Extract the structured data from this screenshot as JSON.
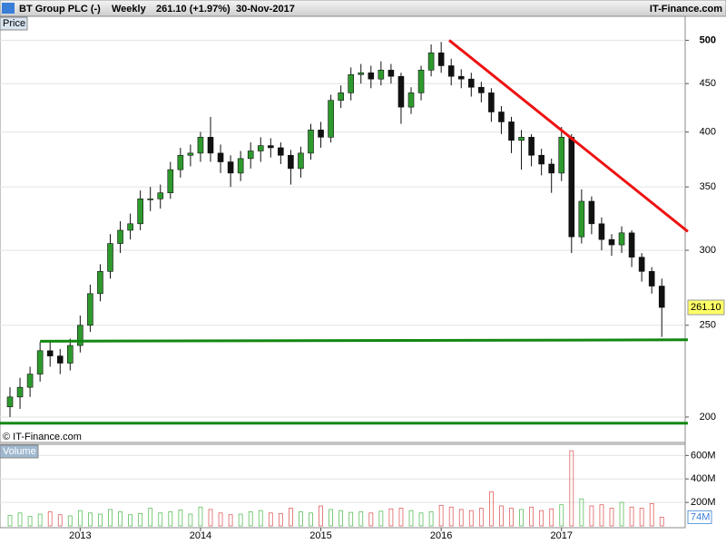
{
  "header": {
    "symbol": "BT Group PLC (-)",
    "period": "Weekly",
    "change": "261.10 (+1.97%)",
    "date": "30-Nov-2017",
    "brand": "IT-Finance.com"
  },
  "chart_data": [
    {
      "type": "candlestick",
      "panel_label": "Price",
      "copyright": "© IT-Finance.com",
      "categories": [
        null,
        null,
        null,
        null,
        null,
        null,
        null,
        "2013",
        null,
        null,
        null,
        null,
        null,
        null,
        null,
        null,
        null,
        null,
        null,
        "2014",
        null,
        null,
        null,
        null,
        null,
        null,
        null,
        null,
        null,
        null,
        null,
        "2015",
        null,
        null,
        null,
        null,
        null,
        null,
        null,
        null,
        null,
        null,
        null,
        "2016",
        null,
        null,
        null,
        null,
        null,
        null,
        null,
        null,
        null,
        null,
        null,
        "2017",
        null,
        null,
        null,
        null,
        null,
        null,
        null,
        null,
        null,
        null
      ],
      "open": [
        205,
        210,
        215,
        222,
        235,
        232,
        228,
        238,
        250,
        270,
        285,
        305,
        315,
        320,
        340,
        340,
        345,
        365,
        378,
        380,
        395,
        380,
        372,
        362,
        375,
        382,
        387,
        385,
        378,
        366,
        380,
        402,
        395,
        432,
        440,
        460,
        462,
        455,
        465,
        458,
        425,
        440,
        465,
        485,
        470,
        458,
        455,
        446,
        440,
        420,
        410,
        392,
        395,
        378,
        370,
        362,
        395,
        310,
        338,
        320,
        308,
        304,
        313,
        295,
        285,
        275
      ],
      "high": [
        215,
        220,
        226,
        240,
        240,
        236,
        242,
        256,
        276,
        290,
        312,
        322,
        328,
        347,
        350,
        352,
        372,
        385,
        388,
        400,
        415,
        388,
        378,
        382,
        390,
        395,
        394,
        390,
        383,
        386,
        408,
        410,
        438,
        448,
        468,
        472,
        470,
        475,
        472,
        462,
        446,
        470,
        495,
        498,
        478,
        466,
        462,
        452,
        445,
        426,
        415,
        402,
        398,
        384,
        375,
        405,
        398,
        348,
        342,
        325,
        312,
        318,
        315,
        298,
        288,
        280
      ],
      "low": [
        200,
        204,
        210,
        218,
        226,
        222,
        224,
        234,
        246,
        265,
        280,
        298,
        308,
        315,
        330,
        332,
        340,
        358,
        368,
        372,
        372,
        362,
        350,
        355,
        366,
        372,
        376,
        370,
        352,
        358,
        374,
        385,
        390,
        424,
        432,
        450,
        445,
        448,
        450,
        408,
        418,
        432,
        458,
        462,
        448,
        445,
        436,
        430,
        410,
        398,
        380,
        365,
        368,
        360,
        345,
        355,
        298,
        305,
        312,
        300,
        296,
        298,
        288,
        278,
        270,
        243
      ],
      "close": [
        210,
        215,
        222,
        235,
        232,
        228,
        238,
        250,
        270,
        285,
        305,
        315,
        320,
        340,
        340,
        345,
        365,
        378,
        380,
        395,
        380,
        372,
        362,
        375,
        382,
        387,
        385,
        378,
        366,
        380,
        402,
        395,
        432,
        440,
        460,
        462,
        455,
        465,
        458,
        425,
        440,
        465,
        485,
        470,
        458,
        455,
        446,
        440,
        420,
        410,
        392,
        395,
        378,
        370,
        362,
        395,
        310,
        338,
        320,
        308,
        304,
        313,
        295,
        285,
        275,
        261.1
      ],
      "up_color": "#2e9a2e",
      "down_color": "#111111",
      "log_scale": true,
      "grid": true,
      "ylim": [
        188,
        530
      ],
      "yticks": [
        200,
        250,
        300,
        350,
        400,
        450,
        500
      ],
      "last_price": {
        "value": 261.1,
        "label": "261.10"
      },
      "trendlines": [
        {
          "color": "#ee1111",
          "x": [
            43.8,
            67.6
          ],
          "y": [
            500,
            314
          ]
        },
        {
          "color": "#118811",
          "x": [
            3,
            67.6
          ],
          "y": [
            240.5,
            241.3
          ]
        },
        {
          "color": "#118811",
          "x": [
            -1,
            67.6
          ],
          "y": [
            197,
            197
          ]
        }
      ]
    },
    {
      "type": "bar",
      "panel_label": "Volume",
      "values": [
        90,
        110,
        80,
        100,
        120,
        95,
        85,
        130,
        110,
        100,
        140,
        120,
        95,
        105,
        150,
        110,
        120,
        135,
        100,
        160,
        140,
        110,
        95,
        100,
        120,
        130,
        110,
        105,
        150,
        120,
        110,
        170,
        140,
        130,
        115,
        120,
        110,
        125,
        145,
        150,
        130,
        110,
        120,
        175,
        160,
        140,
        130,
        150,
        290,
        170,
        150,
        140,
        160,
        130,
        145,
        180,
        640,
        230,
        170,
        180,
        150,
        200,
        160,
        150,
        190,
        74
      ],
      "ylim": [
        0,
        680
      ],
      "yticks": [
        {
          "value": 200,
          "label": "200M"
        },
        {
          "value": 400,
          "label": "400M"
        },
        {
          "value": 600,
          "label": "600M"
        }
      ],
      "last_value": {
        "value": 74,
        "label": "74M"
      }
    }
  ]
}
